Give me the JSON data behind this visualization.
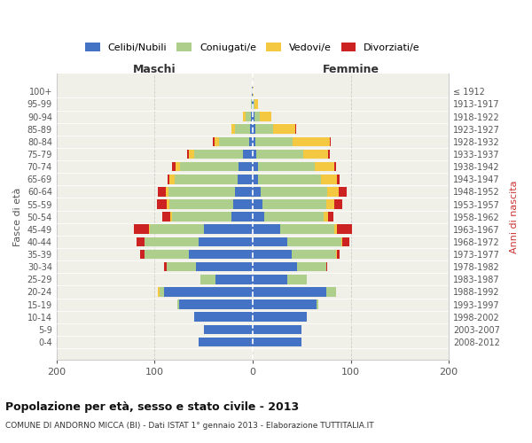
{
  "age_groups": [
    "0-4",
    "5-9",
    "10-14",
    "15-19",
    "20-24",
    "25-29",
    "30-34",
    "35-39",
    "40-44",
    "45-49",
    "50-54",
    "55-59",
    "60-64",
    "65-69",
    "70-74",
    "75-79",
    "80-84",
    "85-89",
    "90-94",
    "95-99",
    "100+"
  ],
  "birth_years": [
    "2008-2012",
    "2003-2007",
    "1998-2002",
    "1993-1997",
    "1988-1992",
    "1983-1987",
    "1978-1982",
    "1973-1977",
    "1968-1972",
    "1963-1967",
    "1958-1962",
    "1953-1957",
    "1948-1952",
    "1943-1947",
    "1938-1942",
    "1933-1937",
    "1928-1932",
    "1923-1927",
    "1918-1922",
    "1913-1917",
    "≤ 1912"
  ],
  "maschi": {
    "celibi": [
      55,
      50,
      60,
      75,
      90,
      38,
      58,
      65,
      55,
      50,
      22,
      20,
      18,
      15,
      14,
      10,
      4,
      3,
      2,
      1,
      1
    ],
    "coniugati": [
      0,
      0,
      0,
      2,
      5,
      15,
      30,
      45,
      55,
      55,
      60,
      65,
      68,
      65,
      60,
      50,
      30,
      15,
      5,
      1,
      0
    ],
    "vedovi": [
      0,
      0,
      0,
      0,
      2,
      0,
      0,
      0,
      0,
      1,
      2,
      3,
      3,
      5,
      5,
      5,
      5,
      4,
      3,
      0,
      0
    ],
    "divorziati": [
      0,
      0,
      0,
      0,
      0,
      0,
      2,
      5,
      8,
      15,
      8,
      10,
      8,
      2,
      3,
      2,
      2,
      0,
      0,
      0,
      0
    ]
  },
  "femmine": {
    "nubili": [
      50,
      50,
      55,
      65,
      75,
      35,
      45,
      40,
      35,
      28,
      12,
      10,
      8,
      5,
      5,
      4,
      3,
      3,
      2,
      1,
      0
    ],
    "coniugate": [
      0,
      0,
      0,
      2,
      10,
      20,
      30,
      45,
      55,
      55,
      60,
      65,
      68,
      65,
      58,
      48,
      38,
      18,
      5,
      1,
      0
    ],
    "vedove": [
      0,
      0,
      0,
      0,
      0,
      0,
      0,
      1,
      1,
      3,
      5,
      8,
      12,
      16,
      20,
      25,
      38,
      22,
      12,
      3,
      1
    ],
    "divorziate": [
      0,
      0,
      0,
      0,
      0,
      0,
      1,
      3,
      8,
      15,
      5,
      8,
      8,
      3,
      2,
      2,
      1,
      1,
      0,
      0,
      0
    ]
  },
  "colors": {
    "celibi": "#4472C4",
    "coniugati": "#AECF8B",
    "vedovi": "#F5C842",
    "divorziati": "#CC2222"
  },
  "xlim": 200,
  "title": "Popolazione per età, sesso e stato civile - 2013",
  "subtitle": "COMUNE DI ANDORNO MICCA (BI) - Dati ISTAT 1° gennaio 2013 - Elaborazione TUTTITALIA.IT",
  "ylabel_left": "Fasce di età",
  "ylabel_right": "Anni di nascita",
  "xlabel_left": "Maschi",
  "xlabel_right": "Femmine",
  "legend_labels": [
    "Celibi/Nubili",
    "Coniugati/e",
    "Vedovi/e",
    "Divorziati/e"
  ],
  "background_color": "#ffffff",
  "axes_bg_color": "#f0f0e8",
  "grid_color": "#cccccc"
}
